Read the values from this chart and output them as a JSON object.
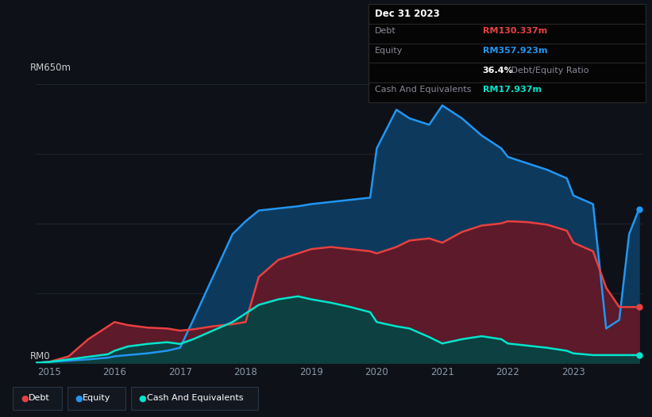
{
  "background_color": "#0e1117",
  "plot_bg_color": "#0e1117",
  "ylabel_text": "RM650m",
  "ylabel_zero": "RM0",
  "title_box": {
    "date": "Dec 31 2023",
    "debt_label": "Debt",
    "debt_value": "RM130.337m",
    "debt_color": "#e84040",
    "equity_label": "Equity",
    "equity_value": "RM357.923m",
    "equity_color": "#2196f3",
    "ratio_bold": "36.4%",
    "ratio_text": " Debt/Equity Ratio",
    "cash_label": "Cash And Equivalents",
    "cash_value": "RM17.937m",
    "cash_color": "#00e5cc"
  },
  "x_ticks": [
    2015,
    2016,
    2017,
    2018,
    2019,
    2020,
    2021,
    2022,
    2023
  ],
  "grid_color": "#1e2535",
  "debt_line_color": "#e84040",
  "equity_line_color": "#2196f3",
  "cash_line_color": "#00e5cc",
  "equity_fill": "#0d3a5c",
  "debt_fill": "#5c1a2a",
  "cash_fill": "#0d4040",
  "years": [
    2014.8,
    2015.0,
    2015.3,
    2015.6,
    2015.9,
    2016.0,
    2016.2,
    2016.5,
    2016.8,
    2017.0,
    2017.2,
    2017.5,
    2017.8,
    2018.0,
    2018.2,
    2018.5,
    2018.8,
    2019.0,
    2019.3,
    2019.6,
    2019.9,
    2020.0,
    2020.3,
    2020.5,
    2020.8,
    2021.0,
    2021.3,
    2021.6,
    2021.9,
    2022.0,
    2022.3,
    2022.6,
    2022.9,
    2023.0,
    2023.3,
    2023.5,
    2023.7,
    2023.85,
    2024.0
  ],
  "equity": [
    0,
    2,
    5,
    8,
    12,
    15,
    18,
    22,
    28,
    35,
    100,
    200,
    300,
    330,
    355,
    360,
    365,
    370,
    375,
    380,
    385,
    500,
    590,
    570,
    555,
    600,
    570,
    530,
    500,
    480,
    465,
    450,
    430,
    390,
    370,
    80,
    100,
    300,
    358
  ],
  "debt": [
    0,
    2,
    15,
    55,
    85,
    95,
    88,
    82,
    80,
    75,
    78,
    85,
    90,
    95,
    200,
    240,
    255,
    265,
    270,
    265,
    260,
    255,
    270,
    285,
    290,
    280,
    305,
    320,
    325,
    330,
    328,
    322,
    308,
    280,
    260,
    175,
    130,
    130,
    130
  ],
  "cash": [
    0,
    2,
    8,
    14,
    20,
    28,
    38,
    44,
    48,
    44,
    55,
    75,
    95,
    115,
    135,
    148,
    155,
    148,
    140,
    130,
    118,
    95,
    85,
    80,
    60,
    45,
    55,
    62,
    55,
    45,
    40,
    35,
    28,
    22,
    18,
    18,
    18,
    18,
    18
  ]
}
